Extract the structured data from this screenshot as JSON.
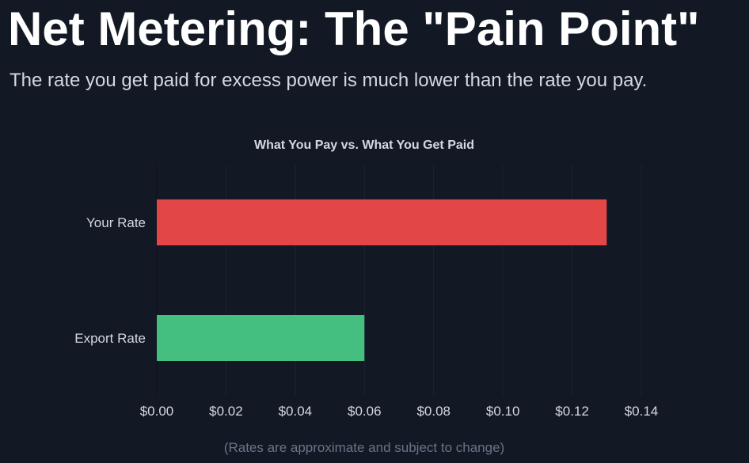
{
  "header": {
    "title": "Net Metering: The \"Pain Point\"",
    "subtitle": "The rate you get paid for excess power is much lower than the rate you pay."
  },
  "footnote": "(Rates are approximate and subject to change)",
  "colors": {
    "background": "#131825",
    "your_rate_bar": "#e24646",
    "export_rate_bar": "#45bf80",
    "grid": "#1c2231",
    "text": "#d4d8e0"
  },
  "chart_data": {
    "type": "bar",
    "orientation": "horizontal",
    "title": "What You Pay vs. What You Get Paid",
    "categories": [
      "Your Rate",
      "Export Rate"
    ],
    "values": [
      0.13,
      0.06
    ],
    "bar_colors": [
      "#e24646",
      "#45bf80"
    ],
    "xlim": [
      0,
      0.14
    ],
    "xticks": [
      0.0,
      0.02,
      0.04,
      0.06,
      0.08,
      0.1,
      0.12,
      0.14
    ],
    "xtick_labels": [
      "$0.00",
      "$0.02",
      "$0.04",
      "$0.06",
      "$0.08",
      "$0.10",
      "$0.12",
      "$0.14"
    ],
    "xlabel": "",
    "ylabel": "",
    "grid": true,
    "legend": false
  }
}
